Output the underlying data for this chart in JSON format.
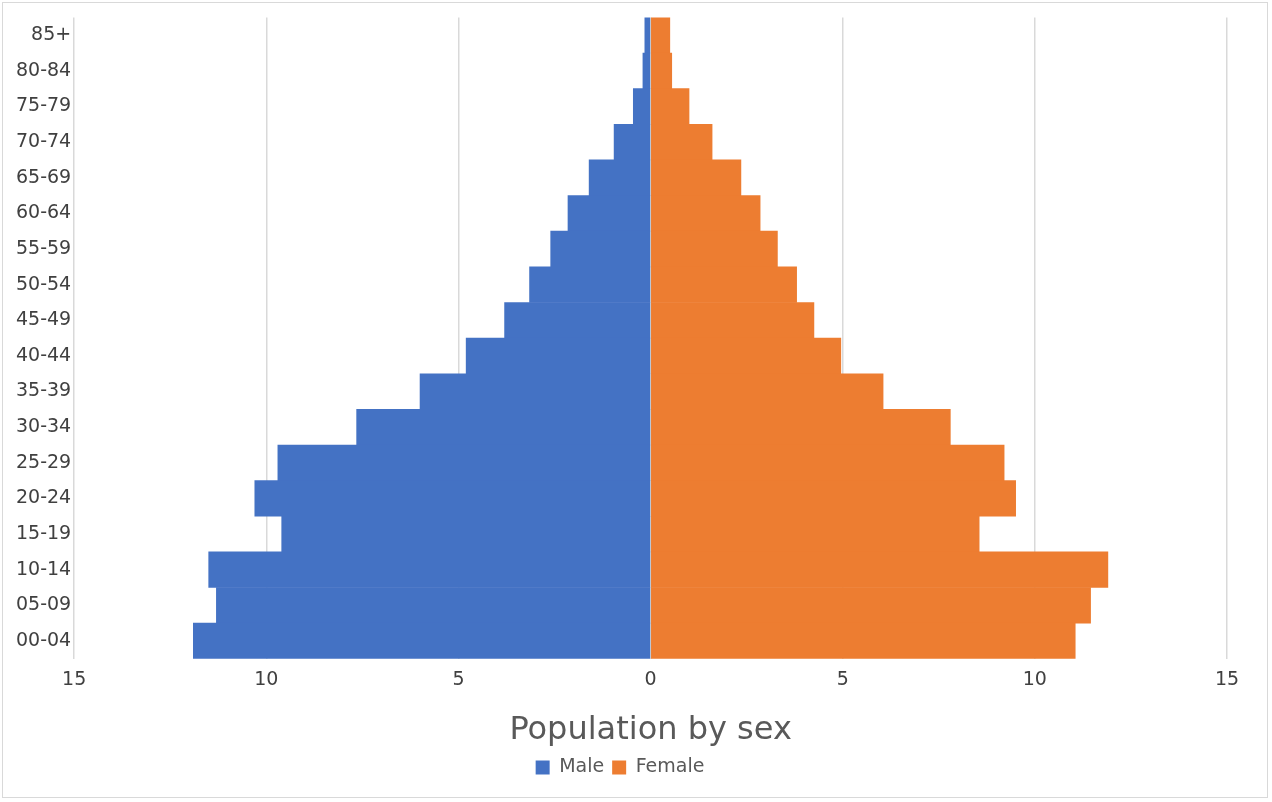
{
  "chart_data": {
    "type": "bar",
    "orientation": "horizontal",
    "stacked": true,
    "xlabel": "Population by sex",
    "categories": [
      "85+",
      "80-84",
      "75-79",
      "70-74",
      "65-69",
      "60-64",
      "55-59",
      "50-54",
      "45-49",
      "40-44",
      "35-39",
      "30-34",
      "25-29",
      "20-24",
      "15-19",
      "10-14",
      "05-09",
      "00-04"
    ],
    "series": [
      {
        "name": "Male",
        "color": "#4472c4",
        "values": [
          -0.15,
          -0.2,
          -0.45,
          -0.95,
          -1.6,
          -2.15,
          -2.6,
          -3.15,
          -3.8,
          -4.8,
          -6.0,
          -7.65,
          -9.7,
          -10.3,
          -9.6,
          -11.5,
          -11.3,
          -11.9
        ]
      },
      {
        "name": "Female",
        "color": "#ed7d31",
        "values": [
          0.5,
          0.55,
          1.0,
          1.6,
          2.35,
          2.85,
          3.3,
          3.8,
          4.25,
          4.95,
          6.05,
          7.8,
          9.2,
          9.5,
          8.55,
          11.9,
          11.45,
          11.05
        ]
      }
    ],
    "xlim": [
      -15,
      15
    ],
    "xticks": [
      {
        "value": -15,
        "label": "15"
      },
      {
        "value": -10,
        "label": "10"
      },
      {
        "value": -5,
        "label": "5"
      },
      0,
      5,
      10,
      15
    ],
    "grid": "x",
    "legend": "bottom"
  }
}
